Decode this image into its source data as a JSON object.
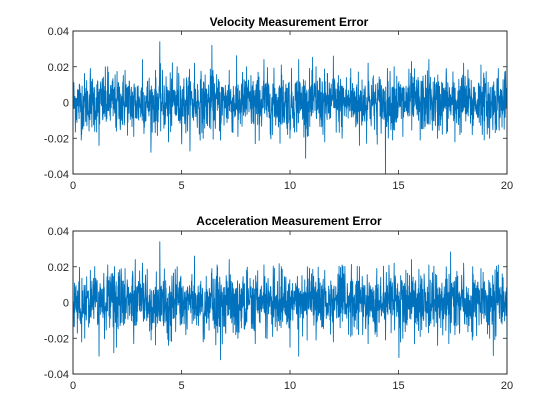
{
  "chart_data": [
    {
      "type": "line",
      "title": "Velocity Measurement Error",
      "xlabel": "",
      "ylabel": "",
      "xlim": [
        0,
        20
      ],
      "ylim": [
        -0.04,
        0.04
      ],
      "xticks": [
        0,
        5,
        10,
        15,
        20
      ],
      "yticks": [
        -0.04,
        -0.02,
        0,
        0.02,
        0.04
      ],
      "xtick_labels": [
        "0",
        "5",
        "10",
        "15",
        "20"
      ],
      "ytick_labels": [
        "-0.04",
        "-0.02",
        "0",
        "0.02",
        "0.04"
      ],
      "grid": false,
      "line_color": "#0072BD",
      "series": [
        {
          "x": [
            0,
            0.4,
            0.8,
            1.2,
            1.6,
            2.0,
            2.4,
            2.8,
            3.2,
            3.6,
            4.0,
            4.4,
            4.8,
            5.2,
            5.6,
            6.0,
            6.4,
            6.8,
            7.2,
            7.6,
            8.0,
            8.4,
            8.8,
            9.2,
            9.6,
            10.0,
            10.4,
            10.8,
            11.2,
            11.6,
            12.0,
            12.4,
            12.8,
            13.2,
            13.6,
            14.0,
            14.4,
            14.8,
            15.2,
            15.6,
            16.0,
            16.4,
            16.8,
            17.2,
            17.6,
            18.0,
            18.4,
            18.8,
            19.2,
            19.6,
            20.0
          ],
          "y": [
            0.02,
            -0.018,
            0.019,
            -0.024,
            0.02,
            -0.016,
            0.018,
            -0.019,
            0.024,
            -0.02,
            0.034,
            -0.022,
            0.02,
            -0.017,
            0.022,
            -0.02,
            0.032,
            -0.021,
            0.018,
            -0.019,
            0.02,
            -0.023,
            0.024,
            -0.018,
            0.021,
            -0.02,
            0.024,
            -0.019,
            0.02,
            -0.022,
            0.026,
            -0.02,
            0.019,
            -0.024,
            0.022,
            -0.018,
            -0.042,
            0.02,
            -0.019,
            0.023,
            -0.021,
            0.024,
            -0.02,
            0.019,
            -0.022,
            0.022,
            -0.018,
            0.021,
            -0.02,
            0.019,
            0.023
          ]
        }
      ]
    },
    {
      "type": "line",
      "title": "Acceleration Measurement Error",
      "xlabel": "",
      "ylabel": "",
      "xlim": [
        0,
        20
      ],
      "ylim": [
        -0.04,
        0.04
      ],
      "xticks": [
        0,
        5,
        10,
        15,
        20
      ],
      "yticks": [
        -0.04,
        -0.02,
        0,
        0.02,
        0.04
      ],
      "xtick_labels": [
        "0",
        "5",
        "10",
        "15",
        "20"
      ],
      "ytick_labels": [
        "-0.04",
        "-0.02",
        "0",
        "0.02",
        "0.04"
      ],
      "grid": false,
      "line_color": "#0072BD",
      "series": [
        {
          "x": [
            0,
            0.4,
            0.8,
            1.2,
            1.6,
            2.0,
            2.4,
            2.8,
            3.2,
            3.6,
            4.0,
            4.4,
            4.8,
            5.2,
            5.6,
            6.0,
            6.4,
            6.8,
            7.2,
            7.6,
            8.0,
            8.4,
            8.8,
            9.2,
            9.6,
            10.0,
            10.4,
            10.8,
            11.2,
            11.6,
            12.0,
            12.4,
            12.8,
            13.2,
            13.6,
            14.0,
            14.4,
            14.8,
            15.2,
            15.6,
            16.0,
            16.4,
            16.8,
            17.2,
            17.6,
            18.0,
            18.4,
            18.8,
            19.2,
            19.6,
            20.0
          ],
          "y": [
            0.02,
            -0.022,
            0.018,
            -0.03,
            0.021,
            -0.025,
            0.019,
            -0.023,
            0.022,
            -0.021,
            0.034,
            -0.024,
            0.02,
            -0.018,
            0.026,
            -0.022,
            0.019,
            -0.032,
            0.024,
            -0.02,
            0.018,
            -0.023,
            0.021,
            -0.019,
            0.02,
            -0.025,
            -0.03,
            0.02,
            -0.021,
            0.018,
            -0.022,
            0.021,
            -0.019,
            0.02,
            -0.023,
            0.019,
            -0.021,
            0.022,
            -0.02,
            0.024,
            -0.019,
            0.021,
            -0.024,
            0.02,
            -0.018,
            0.022,
            -0.021,
            0.019,
            -0.02,
            0.021,
            -0.025
          ]
        }
      ]
    }
  ]
}
